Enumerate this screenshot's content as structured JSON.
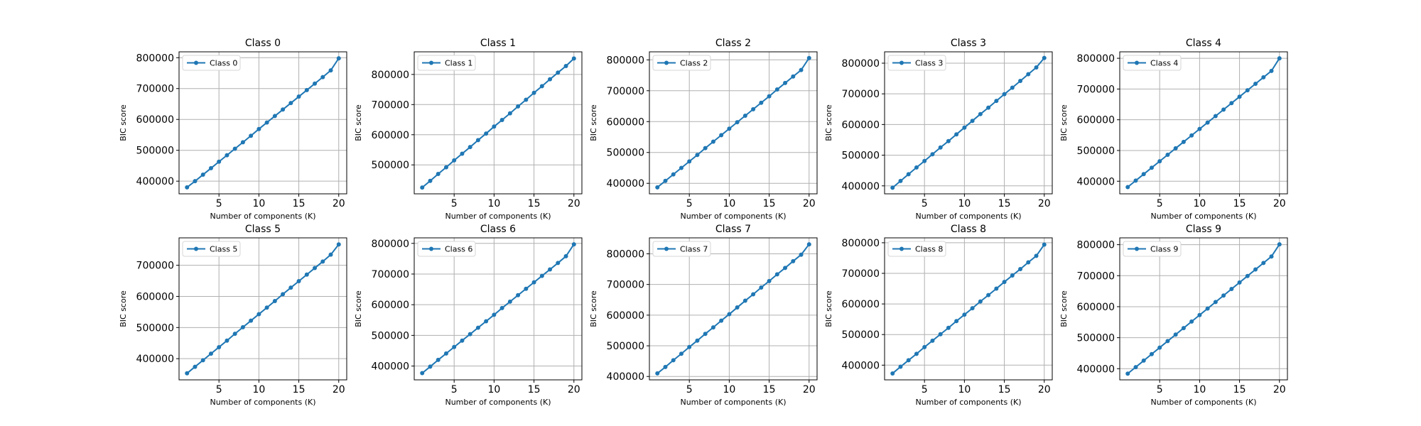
{
  "chart_data": [
    {
      "type": "line",
      "title": "Class 0",
      "xlabel": "Number of components (K)",
      "ylabel": "BIC score",
      "xlim": [
        0,
        21
      ],
      "ylim": [
        359000,
        819000
      ],
      "xticks": [
        5,
        10,
        15,
        20
      ],
      "yticks": [
        400000,
        500000,
        600000,
        700000,
        800000
      ],
      "grid": true,
      "legend": "top-left",
      "color": "#1f77b4",
      "series": [
        {
          "name": "Class 0",
          "x": [
            1,
            2,
            3,
            4,
            5,
            6,
            7,
            8,
            9,
            10,
            11,
            12,
            13,
            14,
            15,
            16,
            17,
            18,
            19,
            20
          ],
          "values": [
            380000,
            400000,
            421000,
            442000,
            463000,
            484000,
            505000,
            526000,
            547000,
            569000,
            590000,
            611000,
            632000,
            653000,
            674000,
            695000,
            716000,
            737000,
            759000,
            798000
          ]
        }
      ]
    },
    {
      "type": "line",
      "title": "Class 1",
      "xlabel": "Number of components (K)",
      "ylabel": "BIC score",
      "xlim": [
        0,
        21
      ],
      "ylim": [
        404000,
        875000
      ],
      "xticks": [
        5,
        10,
        15,
        20
      ],
      "yticks": [
        500000,
        600000,
        700000,
        800000
      ],
      "grid": true,
      "legend": "top-left",
      "color": "#1f77b4",
      "series": [
        {
          "name": "Class 1",
          "x": [
            1,
            2,
            3,
            4,
            5,
            6,
            7,
            8,
            9,
            10,
            11,
            12,
            13,
            14,
            15,
            16,
            17,
            18,
            19,
            20
          ],
          "values": [
            425000,
            447000,
            470000,
            492000,
            515000,
            537000,
            559000,
            582000,
            604000,
            627000,
            649000,
            671000,
            694000,
            716000,
            739000,
            761000,
            784000,
            806000,
            828000,
            853000
          ]
        }
      ]
    },
    {
      "type": "line",
      "title": "Class 2",
      "xlabel": "Number of components (K)",
      "ylabel": "BIC score",
      "xlim": [
        0,
        21
      ],
      "ylim": [
        366000,
        826000
      ],
      "xticks": [
        5,
        10,
        15,
        20
      ],
      "yticks": [
        400000,
        500000,
        600000,
        700000,
        800000
      ],
      "grid": true,
      "legend": "top-left",
      "color": "#1f77b4",
      "series": [
        {
          "name": "Class 2",
          "x": [
            1,
            2,
            3,
            4,
            5,
            6,
            7,
            8,
            9,
            10,
            11,
            12,
            13,
            14,
            15,
            16,
            17,
            18,
            19,
            20
          ],
          "values": [
            387000,
            408000,
            429000,
            450000,
            471000,
            492000,
            514000,
            535000,
            556000,
            577000,
            598000,
            619000,
            640000,
            661000,
            682000,
            704000,
            725000,
            746000,
            767000,
            806000
          ]
        }
      ]
    },
    {
      "type": "line",
      "title": "Class 3",
      "xlabel": "Number of components (K)",
      "ylabel": "BIC score",
      "xlim": [
        0,
        21
      ],
      "ylim": [
        374000,
        837000
      ],
      "xticks": [
        5,
        10,
        15,
        20
      ],
      "yticks": [
        400000,
        500000,
        600000,
        700000,
        800000
      ],
      "grid": true,
      "legend": "top-left",
      "color": "#1f77b4",
      "series": [
        {
          "name": "Class 3",
          "x": [
            1,
            2,
            3,
            4,
            5,
            6,
            7,
            8,
            9,
            10,
            11,
            12,
            13,
            14,
            15,
            16,
            17,
            18,
            19,
            20
          ],
          "values": [
            394000,
            416000,
            438000,
            460000,
            481000,
            503000,
            525000,
            546000,
            568000,
            590000,
            612000,
            634000,
            655000,
            677000,
            699000,
            720000,
            742000,
            764000,
            786000,
            817000
          ]
        }
      ]
    },
    {
      "type": "line",
      "title": "Class 4",
      "xlabel": "Number of components (K)",
      "ylabel": "BIC score",
      "xlim": [
        0,
        21
      ],
      "ylim": [
        359000,
        821000
      ],
      "xticks": [
        5,
        10,
        15,
        20
      ],
      "yticks": [
        400000,
        500000,
        600000,
        700000,
        800000
      ],
      "grid": true,
      "legend": "top-left",
      "color": "#1f77b4",
      "series": [
        {
          "name": "Class 4",
          "x": [
            1,
            2,
            3,
            4,
            5,
            6,
            7,
            8,
            9,
            10,
            11,
            12,
            13,
            14,
            15,
            16,
            17,
            18,
            19,
            20
          ],
          "values": [
            381000,
            402000,
            423000,
            444000,
            465000,
            486000,
            507000,
            528000,
            549000,
            570000,
            591000,
            612000,
            633000,
            654000,
            675000,
            696000,
            717000,
            738000,
            759000,
            800000
          ]
        }
      ]
    },
    {
      "type": "line",
      "title": "Class 5",
      "xlabel": "Number of components (K)",
      "ylabel": "BIC score",
      "xlim": [
        0,
        21
      ],
      "ylim": [
        332000,
        788000
      ],
      "xticks": [
        5,
        10,
        15,
        20
      ],
      "yticks": [
        400000,
        500000,
        600000,
        700000
      ],
      "grid": true,
      "legend": "top-left",
      "color": "#1f77b4",
      "series": [
        {
          "name": "Class 5",
          "x": [
            1,
            2,
            3,
            4,
            5,
            6,
            7,
            8,
            9,
            10,
            11,
            12,
            13,
            14,
            15,
            16,
            17,
            18,
            19,
            20
          ],
          "values": [
            353000,
            374000,
            395000,
            416000,
            437000,
            458000,
            480000,
            501000,
            522000,
            543000,
            564000,
            585000,
            607000,
            628000,
            649000,
            670000,
            691000,
            712000,
            734000,
            767000
          ]
        }
      ]
    },
    {
      "type": "line",
      "title": "Class 6",
      "xlabel": "Number of components (K)",
      "ylabel": "BIC score",
      "xlim": [
        0,
        21
      ],
      "ylim": [
        355000,
        818000
      ],
      "xticks": [
        5,
        10,
        15,
        20
      ],
      "yticks": [
        400000,
        500000,
        600000,
        700000,
        800000
      ],
      "grid": true,
      "legend": "top-left",
      "color": "#1f77b4",
      "series": [
        {
          "name": "Class 6",
          "x": [
            1,
            2,
            3,
            4,
            5,
            6,
            7,
            8,
            9,
            10,
            11,
            12,
            13,
            14,
            15,
            16,
            17,
            18,
            19,
            20
          ],
          "values": [
            377000,
            398000,
            420000,
            441000,
            462000,
            483000,
            504000,
            525000,
            546000,
            567000,
            589000,
            610000,
            631000,
            652000,
            673000,
            694000,
            715000,
            736000,
            758000,
            797000
          ]
        }
      ]
    },
    {
      "type": "line",
      "title": "Class 7",
      "xlabel": "Number of components (K)",
      "ylabel": "BIC score",
      "xlim": [
        0,
        21
      ],
      "ylim": [
        389000,
        852000
      ],
      "xticks": [
        5,
        10,
        15,
        20
      ],
      "yticks": [
        400000,
        500000,
        600000,
        700000,
        800000
      ],
      "grid": true,
      "legend": "top-left",
      "color": "#1f77b4",
      "series": [
        {
          "name": "Class 7",
          "x": [
            1,
            2,
            3,
            4,
            5,
            6,
            7,
            8,
            9,
            10,
            11,
            12,
            13,
            14,
            15,
            16,
            17,
            18,
            19,
            20
          ],
          "values": [
            410000,
            431000,
            453000,
            474000,
            496000,
            517000,
            539000,
            560000,
            582000,
            603000,
            625000,
            647000,
            668000,
            690000,
            711000,
            733000,
            754000,
            776000,
            797000,
            831000
          ]
        }
      ]
    },
    {
      "type": "line",
      "title": "Class 8",
      "xlabel": "Number of components (K)",
      "ylabel": "BIC score",
      "xlim": [
        0,
        21
      ],
      "ylim": [
        352000,
        816000
      ],
      "xticks": [
        5,
        10,
        15,
        20
      ],
      "yticks": [
        400000,
        500000,
        600000,
        700000,
        800000
      ],
      "grid": true,
      "legend": "top-left",
      "color": "#1f77b4",
      "series": [
        {
          "name": "Class 8",
          "x": [
            1,
            2,
            3,
            4,
            5,
            6,
            7,
            8,
            9,
            10,
            11,
            12,
            13,
            14,
            15,
            16,
            17,
            18,
            19,
            20
          ],
          "values": [
            373000,
            395000,
            416000,
            437000,
            459000,
            480000,
            501000,
            522000,
            544000,
            565000,
            586000,
            608000,
            629000,
            650000,
            672000,
            693000,
            714000,
            736000,
            757000,
            794000
          ]
        }
      ]
    },
    {
      "type": "line",
      "title": "Class 9",
      "xlabel": "Number of components (K)",
      "ylabel": "BIC score",
      "xlim": [
        0,
        21
      ],
      "ylim": [
        364000,
        822000
      ],
      "xticks": [
        5,
        10,
        15,
        20
      ],
      "yticks": [
        400000,
        500000,
        600000,
        700000,
        800000
      ],
      "grid": true,
      "legend": "top-left",
      "color": "#1f77b4",
      "series": [
        {
          "name": "Class 9",
          "x": [
            1,
            2,
            3,
            4,
            5,
            6,
            7,
            8,
            9,
            10,
            11,
            12,
            13,
            14,
            15,
            16,
            17,
            18,
            19,
            20
          ],
          "values": [
            384000,
            405000,
            426000,
            447000,
            468000,
            489000,
            510000,
            531000,
            552000,
            573000,
            594000,
            615000,
            636000,
            657000,
            678000,
            699000,
            720000,
            741000,
            762000,
            801000
          ]
        }
      ]
    }
  ]
}
